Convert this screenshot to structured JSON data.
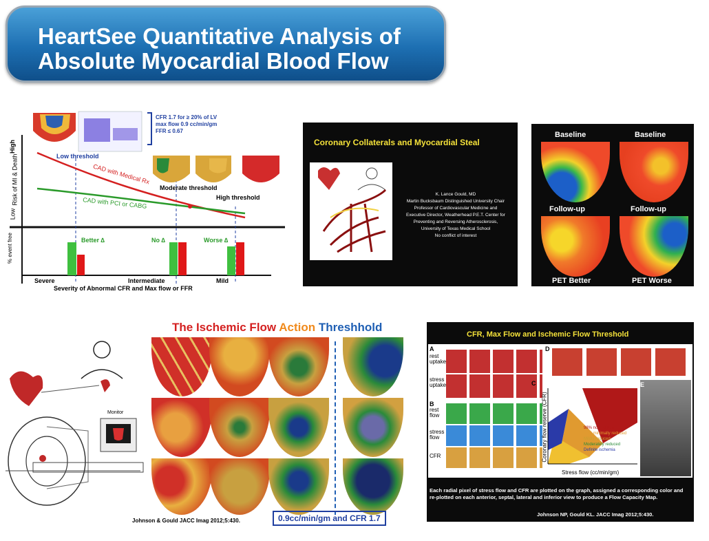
{
  "title": "HeartSee Quantitative Analysis of Absolute Myocardial Blood Flow",
  "title_line1": "HeartSee Quantitative Analysis of",
  "title_line2": "Absolute Myocardial Blood Flow",
  "risk_panel": {
    "criteria": [
      "CFR 1.7 for ≥ 20% of LV",
      "max flow 0.9 cc/min/gm",
      "FFR ≤ 0.67"
    ],
    "y_axis_high": "High",
    "y_axis_low": "Low",
    "y_axis_label": "Risk of MI & Death",
    "y_axis_event": "% event free",
    "low_threshold": "Low threshold",
    "moderate_threshold": "Moderate threshold",
    "high_threshold": "High threshold",
    "medical_rx": "CAD with Medical Rx",
    "pci_cabg": "CAD with PCI or CABG",
    "bar_labels": [
      "Better ∆",
      "No ∆",
      "Worse ∆"
    ],
    "x_ticks": [
      "Severe",
      "Intermediate",
      "Mild"
    ],
    "x_axis_label": "Severity of Abnormal CFR and Max flow or FFR",
    "colors": {
      "medical": "#d42020",
      "pci": "#2a9a2a",
      "green_bar": "#3fbf3f",
      "red_bar": "#e01818"
    }
  },
  "collaterals_panel": {
    "title": "Coronary Collaterals and Myocardial Steal",
    "author_lines": [
      "K. Lance Gould, MD",
      "Martin Bucksbaum Distinguished University Chair",
      "Professor of Cardiovascular Medicine and",
      "Executive Director, Weatherhead P.E.T. Center for",
      "Preventing and Reversing Atherosclerosis,",
      "University of Texas Medical School",
      "No conflict of interest"
    ]
  },
  "pet_panel": {
    "labels": [
      "Baseline",
      "Baseline",
      "Follow-up",
      "Follow-up",
      "PET Better",
      "PET Worse"
    ]
  },
  "ischemic_panel": {
    "title_parts": [
      "The Ischemic Flow ",
      "Action ",
      "Threshhold"
    ],
    "title_colors": [
      "#d42020",
      "#f08a1c",
      "#1f5fb4"
    ],
    "monitor_label": "Monitor",
    "citation": "Johnson & Gould JACC Imag 2012;5:430.",
    "threshold_box": "0.9cc/min/gm and CFR 1.7"
  },
  "flow_capacity_panel": {
    "title": "CFR, Max Flow and Ischemic Flow Threshold",
    "row_labels": [
      "rest uptake",
      "stress uptake",
      "rest flow",
      "stress flow",
      "CFR"
    ],
    "panel_letters": [
      "A",
      "B",
      "C",
      "D",
      "E"
    ],
    "y_axis": "Coronary flow reserve (CFR)",
    "x_axis": "Stress flow (cc/min/gm)",
    "legend": [
      "98% normal flow",
      "90% minimally reduced",
      "Mildly reduced",
      "Moderately reduced",
      "Definite ischemia"
    ],
    "caption": "Each radial pixel of stress flow and CFR are plotted on the graph, assigned a corresponding color and re-plotted on each anterior, septal, lateral and inferior view to produce a Flow Capacity Map.",
    "citation": "Johnson NP, Gould KL. JACC Imag 2012;5:430."
  }
}
